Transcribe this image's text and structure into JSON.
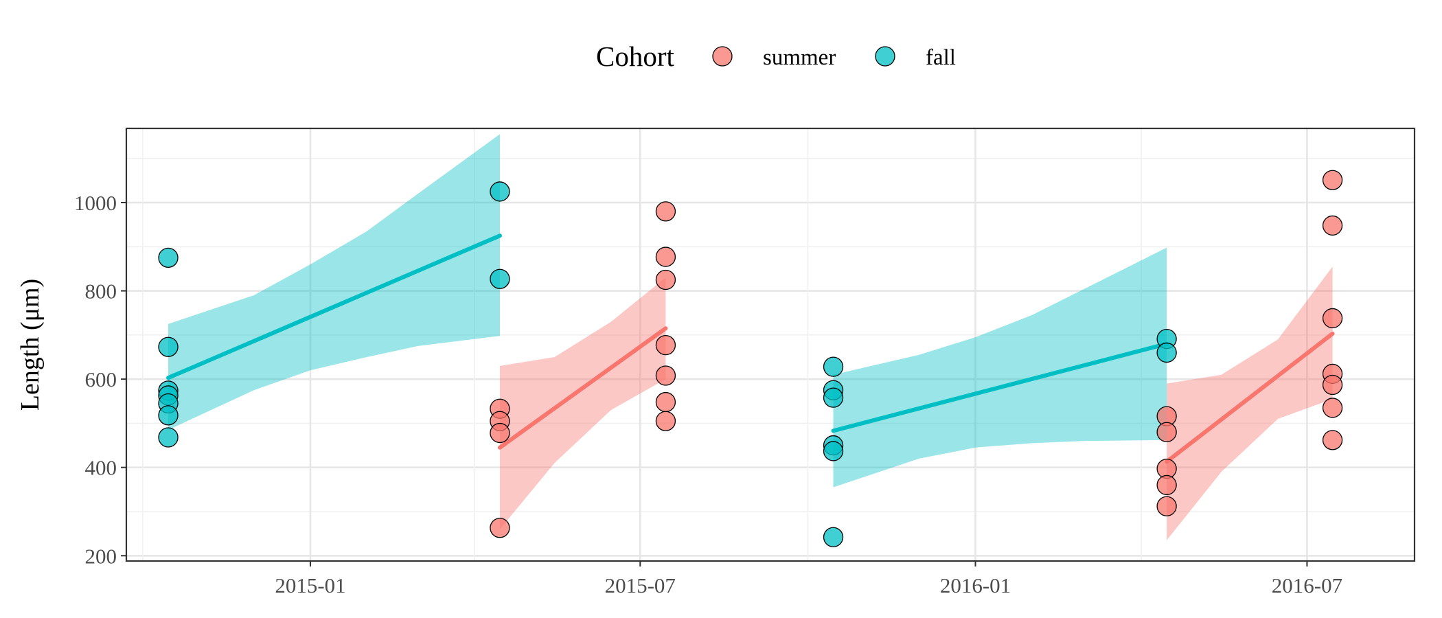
{
  "chart_data": {
    "type": "scatter",
    "title": "",
    "xlabel": "",
    "ylabel": "Length (μm)",
    "x_type": "date",
    "xlim": [
      "2014-09-22",
      "2016-08-29"
    ],
    "ylim": [
      188,
      1168
    ],
    "x_ticks": [
      "2014-10-01",
      "2015-01-01",
      "2015-04-01",
      "2015-07-01",
      "2015-10-01",
      "2016-01-01",
      "2016-04-01",
      "2016-07-01"
    ],
    "x_tick_labels": {
      "2015-01-01": "2015-01",
      "2015-07-01": "2015-07",
      "2016-01-01": "2016-01",
      "2016-07-01": "2016-07"
    },
    "y_ticks": [
      200,
      400,
      600,
      800,
      1000
    ],
    "y_minor_ticks": [
      300,
      500,
      700,
      900,
      1100
    ],
    "grid": true,
    "legend": {
      "title": "Cohort",
      "position": "top",
      "entries": [
        {
          "label": "summer",
          "color": "#F8766D"
        },
        {
          "label": "fall",
          "color": "#00BFC4"
        }
      ]
    },
    "series": [
      {
        "name": "summer",
        "color": "#F8766D",
        "points": [
          {
            "x": "2015-04-15",
            "y": 533
          },
          {
            "x": "2015-04-15",
            "y": 505
          },
          {
            "x": "2015-04-15",
            "y": 478
          },
          {
            "x": "2015-04-15",
            "y": 263
          },
          {
            "x": "2015-07-15",
            "y": 980
          },
          {
            "x": "2015-07-15",
            "y": 877
          },
          {
            "x": "2015-07-15",
            "y": 825
          },
          {
            "x": "2015-07-15",
            "y": 677
          },
          {
            "x": "2015-07-15",
            "y": 608
          },
          {
            "x": "2015-07-15",
            "y": 548
          },
          {
            "x": "2015-07-15",
            "y": 505
          },
          {
            "x": "2016-04-15",
            "y": 516
          },
          {
            "x": "2016-04-15",
            "y": 480
          },
          {
            "x": "2016-04-15",
            "y": 397
          },
          {
            "x": "2016-04-15",
            "y": 360
          },
          {
            "x": "2016-04-15",
            "y": 312
          },
          {
            "x": "2016-07-15",
            "y": 1051
          },
          {
            "x": "2016-07-15",
            "y": 948
          },
          {
            "x": "2016-07-15",
            "y": 738
          },
          {
            "x": "2016-07-15",
            "y": 612
          },
          {
            "x": "2016-07-15",
            "y": 587
          },
          {
            "x": "2016-07-15",
            "y": 535
          },
          {
            "x": "2016-07-15",
            "y": 462
          }
        ],
        "fits": [
          {
            "x": [
              "2015-04-15",
              "2015-07-15"
            ],
            "y": [
              445,
              715
            ],
            "lower": [
              [
                "2015-04-15",
                260
              ],
              [
                "2015-05-15",
                410
              ],
              [
                "2015-06-15",
                530
              ],
              [
                "2015-07-15",
                600
              ]
            ],
            "upper": [
              [
                "2015-04-15",
                630
              ],
              [
                "2015-05-15",
                650
              ],
              [
                "2015-06-15",
                730
              ],
              [
                "2015-07-15",
                830
              ]
            ]
          },
          {
            "x": [
              "2016-04-15",
              "2016-07-15"
            ],
            "y": [
              413,
              703
            ],
            "lower": [
              [
                "2016-04-15",
                235
              ],
              [
                "2016-05-15",
                390
              ],
              [
                "2016-06-15",
                510
              ],
              [
                "2016-07-15",
                555
              ]
            ],
            "upper": [
              [
                "2016-04-15",
                590
              ],
              [
                "2016-05-15",
                610
              ],
              [
                "2016-06-15",
                690
              ],
              [
                "2016-07-15",
                855
              ]
            ]
          }
        ]
      },
      {
        "name": "fall",
        "color": "#00BFC4",
        "points": [
          {
            "x": "2014-10-15",
            "y": 875
          },
          {
            "x": "2014-10-15",
            "y": 673
          },
          {
            "x": "2014-10-15",
            "y": 574
          },
          {
            "x": "2014-10-15",
            "y": 563
          },
          {
            "x": "2014-10-15",
            "y": 545
          },
          {
            "x": "2014-10-15",
            "y": 518
          },
          {
            "x": "2014-10-15",
            "y": 468
          },
          {
            "x": "2015-04-15",
            "y": 1025
          },
          {
            "x": "2015-04-15",
            "y": 827
          },
          {
            "x": "2015-10-15",
            "y": 628
          },
          {
            "x": "2015-10-15",
            "y": 575
          },
          {
            "x": "2015-10-15",
            "y": 558
          },
          {
            "x": "2015-10-15",
            "y": 450
          },
          {
            "x": "2015-10-15",
            "y": 437
          },
          {
            "x": "2015-10-15",
            "y": 242
          },
          {
            "x": "2016-04-15",
            "y": 691
          },
          {
            "x": "2016-04-15",
            "y": 660
          }
        ],
        "fits": [
          {
            "x": [
              "2014-10-15",
              "2015-04-15"
            ],
            "y": [
              603,
              925
            ],
            "lower": [
              [
                "2014-10-15",
                485
              ],
              [
                "2014-12-01",
                575
              ],
              [
                "2015-01-01",
                620
              ],
              [
                "2015-02-01",
                650
              ],
              [
                "2015-03-01",
                675
              ],
              [
                "2015-04-15",
                698
              ]
            ],
            "upper": [
              [
                "2014-10-15",
                725
              ],
              [
                "2014-12-01",
                790
              ],
              [
                "2015-01-01",
                860
              ],
              [
                "2015-02-01",
                935
              ],
              [
                "2015-03-01",
                1020
              ],
              [
                "2015-04-15",
                1155
              ]
            ]
          },
          {
            "x": [
              "2015-10-15",
              "2016-04-15"
            ],
            "y": [
              483,
              680
            ],
            "lower": [
              [
                "2015-10-15",
                355
              ],
              [
                "2015-12-01",
                420
              ],
              [
                "2016-01-01",
                445
              ],
              [
                "2016-02-01",
                455
              ],
              [
                "2016-03-01",
                460
              ],
              [
                "2016-04-15",
                462
              ]
            ],
            "upper": [
              [
                "2015-10-15",
                610
              ],
              [
                "2015-12-01",
                655
              ],
              [
                "2016-01-01",
                695
              ],
              [
                "2016-02-01",
                745
              ],
              [
                "2016-03-01",
                805
              ],
              [
                "2016-04-15",
                898
              ]
            ]
          }
        ]
      }
    ]
  }
}
